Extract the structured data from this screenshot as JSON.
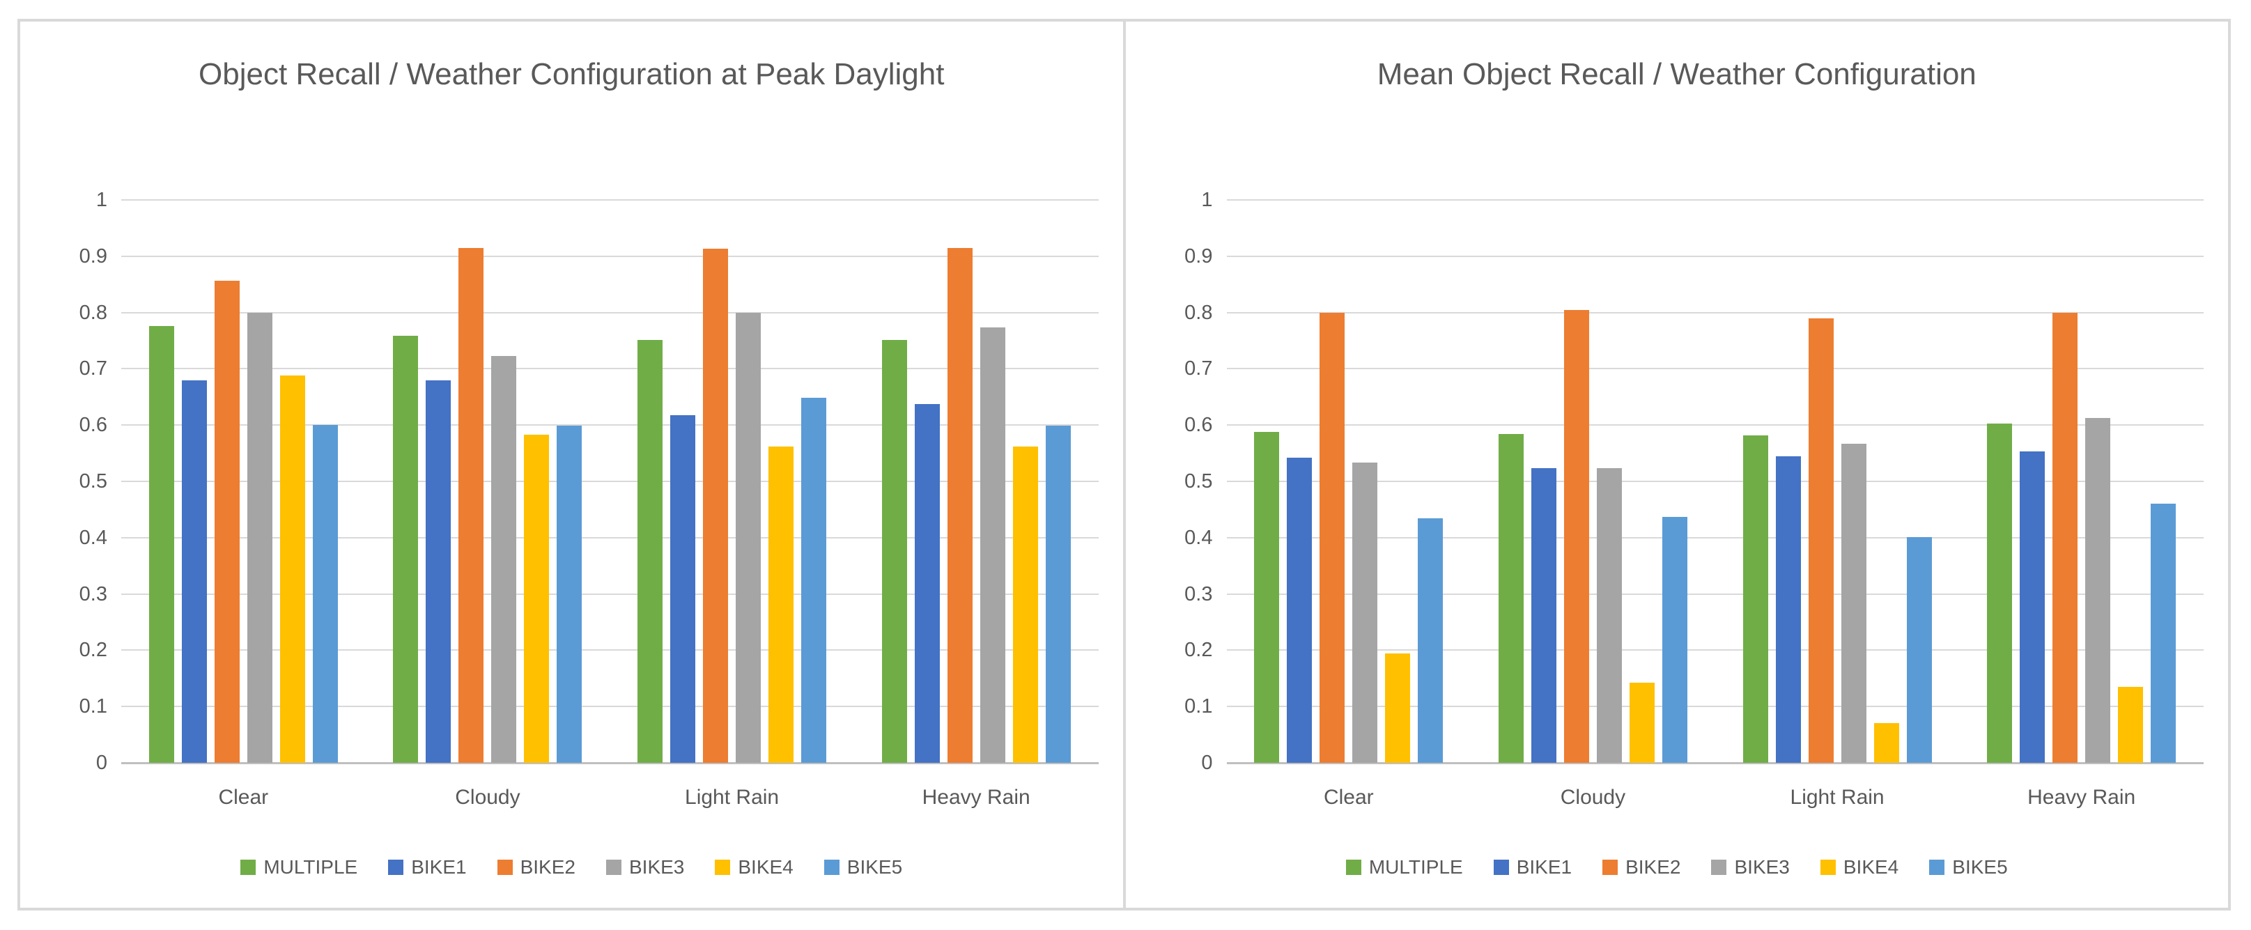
{
  "page": {
    "background_color": "#ffffff",
    "panel_border_color": "#d9d9d9",
    "gridline_color": "#d9d9d9",
    "text_color": "#595959"
  },
  "chart_data": [
    {
      "type": "bar",
      "title": "Object Recall / Weather Configuration at Peak Daylight",
      "categories": [
        "Clear",
        "Cloudy",
        "Light Rain",
        "Heavy Rain"
      ],
      "series": [
        {
          "name": "MULTIPLE",
          "color": "#70AD47",
          "values": [
            0.776,
            0.759,
            0.751,
            0.751
          ]
        },
        {
          "name": "BIKE1",
          "color": "#4472C4",
          "values": [
            0.68,
            0.679,
            0.617,
            0.638
          ]
        },
        {
          "name": "BIKE2",
          "color": "#ED7D31",
          "values": [
            0.856,
            0.915,
            0.914,
            0.915
          ]
        },
        {
          "name": "BIKE3",
          "color": "#A5A5A5",
          "values": [
            0.8,
            0.723,
            0.8,
            0.773
          ]
        },
        {
          "name": "BIKE4",
          "color": "#FFC000",
          "values": [
            0.688,
            0.583,
            0.562,
            0.562
          ]
        },
        {
          "name": "BIKE5",
          "color": "#5B9BD5",
          "values": [
            0.6,
            0.599,
            0.649,
            0.599
          ]
        }
      ],
      "ylim": [
        0,
        1
      ],
      "y_ticks": [
        "1",
        "0.9",
        "0.8",
        "0.7",
        "0.6",
        "0.5",
        "0.4",
        "0.3",
        "0.2",
        "0.1",
        "0"
      ],
      "grid": true,
      "legend_position": "bottom"
    },
    {
      "type": "bar",
      "title": "Mean Object Recall / Weather Configuration",
      "categories": [
        "Clear",
        "Cloudy",
        "Light Rain",
        "Heavy Rain"
      ],
      "series": [
        {
          "name": "MULTIPLE",
          "color": "#70AD47",
          "values": [
            0.588,
            0.584,
            0.582,
            0.603
          ]
        },
        {
          "name": "BIKE1",
          "color": "#4472C4",
          "values": [
            0.542,
            0.524,
            0.545,
            0.553
          ]
        },
        {
          "name": "BIKE2",
          "color": "#ED7D31",
          "values": [
            0.8,
            0.805,
            0.79,
            0.8
          ]
        },
        {
          "name": "BIKE3",
          "color": "#A5A5A5",
          "values": [
            0.533,
            0.524,
            0.567,
            0.613
          ]
        },
        {
          "name": "BIKE4",
          "color": "#FFC000",
          "values": [
            0.194,
            0.142,
            0.07,
            0.135
          ]
        },
        {
          "name": "BIKE5",
          "color": "#5B9BD5",
          "values": [
            0.435,
            0.437,
            0.401,
            0.461
          ]
        }
      ],
      "ylim": [
        0,
        1
      ],
      "y_ticks": [
        "1",
        "0.9",
        "0.8",
        "0.7",
        "0.6",
        "0.5",
        "0.4",
        "0.3",
        "0.2",
        "0.1",
        "0"
      ],
      "grid": true,
      "legend_position": "bottom"
    }
  ]
}
